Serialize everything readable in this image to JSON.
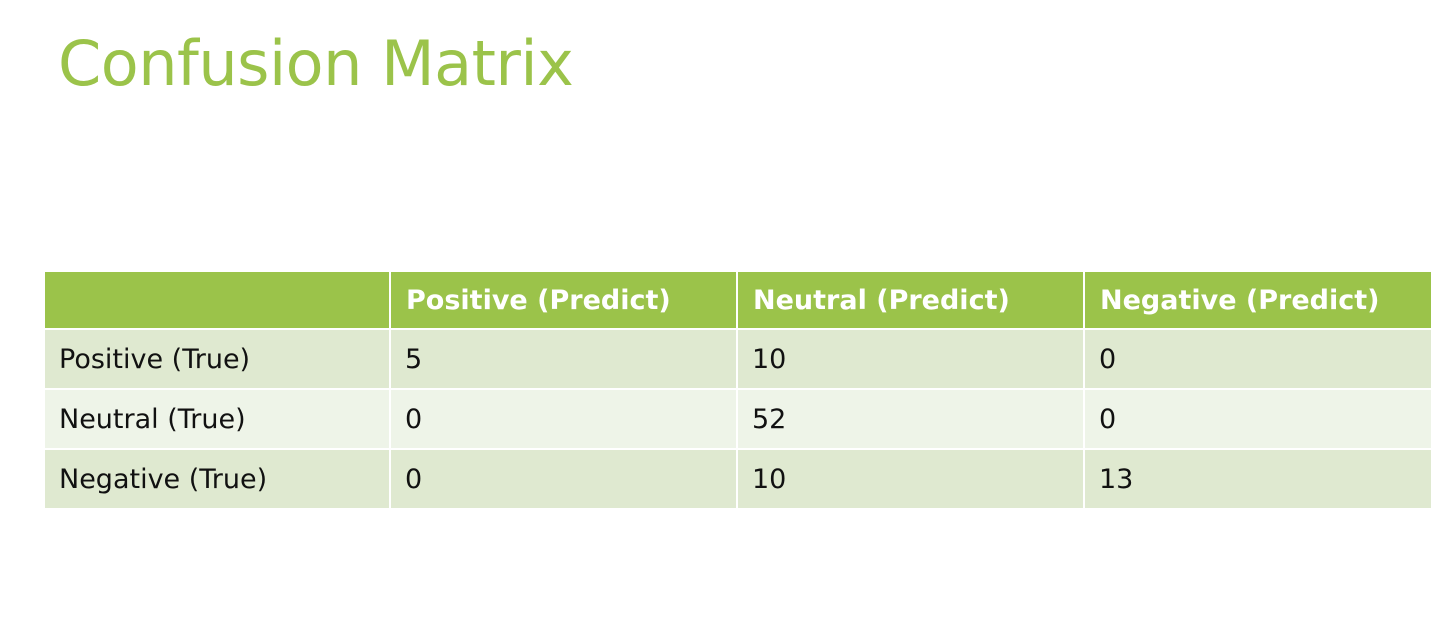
{
  "slide": {
    "title": "Confusion Matrix"
  },
  "table": {
    "corner": "",
    "columns": [
      "Positive (Predict)",
      "Neutral (Predict)",
      "Negative (Predict)"
    ],
    "rows": [
      {
        "label": "Positive (True)",
        "values": [
          "5",
          "10",
          "0"
        ]
      },
      {
        "label": "Neutral (True)",
        "values": [
          "0",
          "52",
          "0"
        ]
      },
      {
        "label": "Negative (True)",
        "values": [
          "0",
          "10",
          "13"
        ]
      }
    ]
  },
  "colors": {
    "accent": "#9bc34a",
    "row_band_dark": "#dfe9d0",
    "row_band_light": "#eef4e8"
  }
}
